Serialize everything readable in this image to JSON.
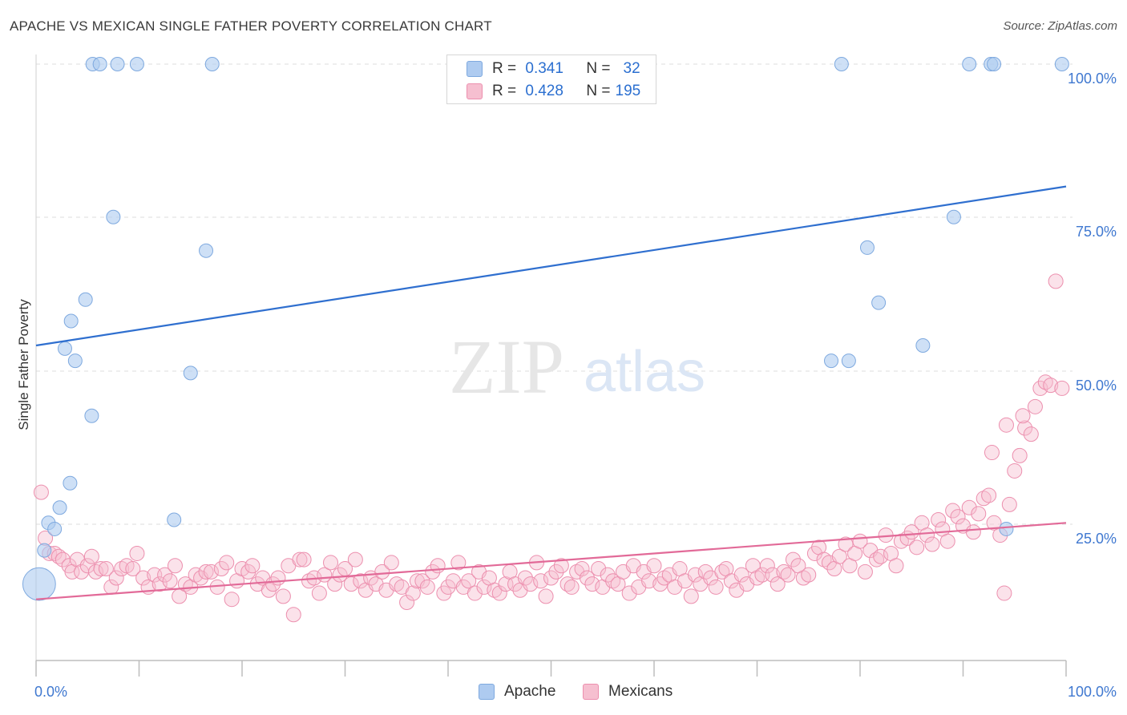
{
  "header": {
    "title": "APACHE VS MEXICAN SINGLE FATHER POVERTY CORRELATION CHART",
    "source": "Source: ZipAtlas.com"
  },
  "watermark": {
    "zip": "ZIP",
    "atlas": "atlas"
  },
  "stats_legend": {
    "rows": [
      {
        "r_label": "R =",
        "r_value": "0.341",
        "n_label": "N =",
        "n_value": "32"
      },
      {
        "r_label": "R =",
        "r_value": "0.428",
        "n_label": "N =",
        "n_value": "195"
      }
    ]
  },
  "legend": {
    "items": [
      "Apache",
      "Mexicans"
    ]
  },
  "colors": {
    "apache_fill": "#aecbf0",
    "apache_stroke": "#7ea9df",
    "apache_line": "#2f6fcf",
    "mexican_fill": "#f6bfd0",
    "mexican_stroke": "#ec8fae",
    "mexican_line": "#e26a98",
    "axis_text": "#3f78d0",
    "grid": "#dedede"
  },
  "chart_data": {
    "type": "scatter",
    "title": "APACHE VS MEXICAN SINGLE FATHER POVERTY CORRELATION CHART",
    "ylabel": "Single Father Poverty",
    "xlabel": "",
    "xlim": [
      0,
      100
    ],
    "ylim": [
      0,
      100
    ],
    "x_tick_labels": [
      "0.0%",
      "100.0%"
    ],
    "y_tick_labels": [
      "100.0%",
      "75.0%",
      "50.0%",
      "25.0%"
    ],
    "y_ticks": [
      100,
      75,
      50,
      25
    ],
    "grid": true,
    "legend_position": "bottom",
    "series": [
      {
        "name": "Apache",
        "trend": {
          "start": [
            0,
            51.5
          ],
          "end": [
            100,
            77.5
          ]
        },
        "points": [
          [
            0.3,
            12.5,
            2.4
          ],
          [
            0.8,
            18.0,
            1
          ],
          [
            1.2,
            22.5,
            1
          ],
          [
            1.8,
            21.5,
            1
          ],
          [
            2.3,
            25.0,
            1
          ],
          [
            3.3,
            29.0,
            1
          ],
          [
            2.8,
            51.0,
            1
          ],
          [
            3.8,
            49.0,
            1
          ],
          [
            3.4,
            55.5,
            1
          ],
          [
            4.8,
            59.0,
            1
          ],
          [
            5.4,
            40.0,
            1
          ],
          [
            7.5,
            72.5,
            1
          ],
          [
            15.0,
            47.0,
            1
          ],
          [
            16.5,
            67.0,
            1
          ],
          [
            13.4,
            23.0,
            1
          ],
          [
            5.5,
            97.5,
            1
          ],
          [
            6.2,
            97.5,
            1
          ],
          [
            7.9,
            97.5,
            1
          ],
          [
            9.8,
            97.5,
            1
          ],
          [
            17.1,
            97.5,
            1
          ],
          [
            78.2,
            97.5,
            1
          ],
          [
            90.6,
            97.5,
            1
          ],
          [
            92.7,
            97.5,
            1
          ],
          [
            93.0,
            97.5,
            1
          ],
          [
            99.6,
            97.5,
            1
          ],
          [
            89.1,
            72.5,
            1
          ],
          [
            80.7,
            67.5,
            1
          ],
          [
            81.8,
            58.5,
            1
          ],
          [
            86.1,
            51.5,
            1
          ],
          [
            77.2,
            49.0,
            1
          ],
          [
            78.9,
            49.0,
            1
          ],
          [
            94.2,
            21.5,
            1
          ]
        ]
      },
      {
        "name": "Mexicans",
        "trend": {
          "start": [
            0,
            10.0
          ],
          "end": [
            100,
            22.5
          ]
        },
        "points": [
          [
            0.5,
            27.5
          ],
          [
            0.9,
            20.0
          ],
          [
            1.3,
            17.5
          ],
          [
            1.8,
            17.5
          ],
          [
            2.2,
            17.0
          ],
          [
            2.6,
            16.5
          ],
          [
            3.2,
            15.5
          ],
          [
            3.5,
            14.5
          ],
          [
            4.0,
            16.5
          ],
          [
            4.4,
            14.5
          ],
          [
            5.0,
            15.5
          ],
          [
            5.4,
            17.0
          ],
          [
            5.8,
            14.5
          ],
          [
            6.3,
            15.0
          ],
          [
            6.8,
            15.0
          ],
          [
            7.3,
            12.0
          ],
          [
            7.8,
            13.5
          ],
          [
            8.3,
            15.0
          ],
          [
            8.8,
            15.5
          ],
          [
            9.4,
            15.0
          ],
          [
            9.8,
            17.5
          ],
          [
            10.4,
            13.5
          ],
          [
            10.9,
            12.0
          ],
          [
            11.5,
            14.0
          ],
          [
            12.0,
            12.5
          ],
          [
            12.5,
            14.0
          ],
          [
            13.0,
            13.0
          ],
          [
            13.5,
            15.5
          ],
          [
            13.9,
            10.5
          ],
          [
            14.5,
            12.5
          ],
          [
            15.0,
            12.0
          ],
          [
            15.5,
            14.0
          ],
          [
            16.0,
            13.5
          ],
          [
            16.5,
            14.5
          ],
          [
            17.0,
            14.5
          ],
          [
            17.6,
            12.0
          ],
          [
            18.0,
            15.0
          ],
          [
            18.5,
            16.0
          ],
          [
            19.0,
            10.0
          ],
          [
            19.5,
            13.0
          ],
          [
            20.0,
            15.0
          ],
          [
            20.6,
            14.5
          ],
          [
            21.0,
            15.5
          ],
          [
            21.5,
            12.5
          ],
          [
            22.0,
            13.5
          ],
          [
            22.6,
            11.5
          ],
          [
            23.0,
            12.5
          ],
          [
            23.5,
            13.5
          ],
          [
            24.0,
            10.5
          ],
          [
            24.5,
            15.5
          ],
          [
            25.0,
            7.5
          ],
          [
            25.6,
            16.5
          ],
          [
            26.0,
            16.5
          ],
          [
            26.5,
            13.0
          ],
          [
            27.0,
            13.5
          ],
          [
            27.5,
            11.0
          ],
          [
            28.0,
            14.0
          ],
          [
            28.6,
            16.0
          ],
          [
            29.0,
            12.5
          ],
          [
            29.5,
            14.0
          ],
          [
            30.0,
            15.0
          ],
          [
            30.6,
            12.5
          ],
          [
            31.0,
            16.5
          ],
          [
            31.5,
            13.0
          ],
          [
            32.0,
            11.5
          ],
          [
            32.5,
            13.5
          ],
          [
            33.0,
            12.5
          ],
          [
            33.6,
            14.5
          ],
          [
            34.0,
            11.5
          ],
          [
            34.5,
            16.0
          ],
          [
            35.0,
            12.5
          ],
          [
            35.5,
            12.0
          ],
          [
            36.0,
            9.5
          ],
          [
            36.6,
            11.0
          ],
          [
            37.0,
            13.0
          ],
          [
            37.5,
            13.0
          ],
          [
            38.0,
            12.0
          ],
          [
            38.5,
            14.5
          ],
          [
            39.0,
            15.5
          ],
          [
            39.6,
            11.0
          ],
          [
            40.0,
            12.0
          ],
          [
            40.5,
            13.0
          ],
          [
            41.0,
            16.0
          ],
          [
            41.5,
            12.0
          ],
          [
            42.0,
            13.0
          ],
          [
            42.6,
            11.0
          ],
          [
            43.0,
            14.5
          ],
          [
            43.5,
            12.0
          ],
          [
            44.0,
            13.5
          ],
          [
            44.5,
            11.5
          ],
          [
            45.0,
            11.0
          ],
          [
            45.6,
            12.5
          ],
          [
            46.0,
            14.5
          ],
          [
            46.5,
            12.5
          ],
          [
            47.0,
            11.5
          ],
          [
            47.5,
            13.5
          ],
          [
            48.0,
            12.5
          ],
          [
            48.6,
            16.0
          ],
          [
            49.0,
            13.0
          ],
          [
            49.5,
            10.5
          ],
          [
            50.0,
            13.5
          ],
          [
            50.5,
            14.5
          ],
          [
            51.0,
            15.5
          ],
          [
            51.6,
            12.5
          ],
          [
            52.0,
            12.0
          ],
          [
            52.5,
            14.5
          ],
          [
            53.0,
            15.0
          ],
          [
            53.5,
            13.5
          ],
          [
            54.0,
            12.5
          ],
          [
            54.6,
            15.0
          ],
          [
            55.0,
            12.0
          ],
          [
            55.5,
            14.0
          ],
          [
            56.0,
            13.0
          ],
          [
            56.5,
            12.5
          ],
          [
            57.0,
            14.5
          ],
          [
            57.6,
            11.0
          ],
          [
            58.0,
            15.5
          ],
          [
            58.5,
            12.0
          ],
          [
            59.0,
            14.5
          ],
          [
            59.5,
            13.0
          ],
          [
            60.0,
            15.5
          ],
          [
            60.6,
            12.5
          ],
          [
            61.0,
            13.5
          ],
          [
            61.5,
            14.0
          ],
          [
            62.0,
            12.0
          ],
          [
            62.5,
            15.0
          ],
          [
            63.0,
            13.0
          ],
          [
            63.6,
            10.5
          ],
          [
            64.0,
            14.0
          ],
          [
            64.5,
            12.5
          ],
          [
            65.0,
            14.5
          ],
          [
            65.5,
            13.5
          ],
          [
            66.0,
            12.0
          ],
          [
            66.6,
            14.5
          ],
          [
            67.0,
            15.0
          ],
          [
            67.5,
            13.0
          ],
          [
            68.0,
            11.5
          ],
          [
            68.5,
            14.0
          ],
          [
            69.0,
            12.5
          ],
          [
            69.6,
            15.5
          ],
          [
            70.0,
            13.5
          ],
          [
            70.5,
            14.0
          ],
          [
            71.0,
            15.5
          ],
          [
            71.5,
            14.0
          ],
          [
            72.0,
            12.5
          ],
          [
            72.6,
            14.5
          ],
          [
            73.0,
            14.0
          ],
          [
            73.5,
            16.5
          ],
          [
            74.0,
            15.5
          ],
          [
            74.5,
            13.5
          ],
          [
            75.0,
            14.0
          ],
          [
            75.6,
            17.5
          ],
          [
            76.0,
            18.5
          ],
          [
            76.5,
            16.5
          ],
          [
            77.0,
            16.0
          ],
          [
            77.5,
            15.0
          ],
          [
            78.0,
            17.0
          ],
          [
            78.6,
            19.0
          ],
          [
            79.0,
            15.5
          ],
          [
            79.5,
            17.5
          ],
          [
            80.0,
            19.5
          ],
          [
            80.5,
            14.5
          ],
          [
            81.0,
            18.0
          ],
          [
            81.6,
            16.5
          ],
          [
            82.0,
            17.0
          ],
          [
            82.5,
            20.5
          ],
          [
            83.0,
            17.5
          ],
          [
            83.5,
            15.5
          ],
          [
            84.0,
            19.5
          ],
          [
            84.6,
            20.0
          ],
          [
            85.0,
            21.0
          ],
          [
            85.5,
            18.5
          ],
          [
            86.0,
            22.5
          ],
          [
            86.5,
            20.5
          ],
          [
            87.0,
            19.0
          ],
          [
            87.6,
            23.0
          ],
          [
            88.0,
            21.5
          ],
          [
            88.5,
            19.5
          ],
          [
            89.0,
            24.5
          ],
          [
            89.5,
            23.5
          ],
          [
            90.0,
            22.0
          ],
          [
            90.6,
            25.0
          ],
          [
            91.0,
            21.0
          ],
          [
            91.5,
            24.0
          ],
          [
            92.0,
            26.5
          ],
          [
            92.5,
            27.0
          ],
          [
            93.0,
            22.5
          ],
          [
            93.6,
            20.5
          ],
          [
            94.0,
            11.0
          ],
          [
            94.5,
            25.5
          ],
          [
            95.0,
            31.0
          ],
          [
            95.5,
            33.5
          ],
          [
            96.0,
            38.0
          ],
          [
            96.6,
            37.0
          ],
          [
            97.0,
            41.5
          ],
          [
            97.5,
            44.5
          ],
          [
            98.0,
            45.5
          ],
          [
            98.5,
            45.0
          ],
          [
            99.0,
            62.0
          ],
          [
            99.6,
            44.5
          ],
          [
            92.8,
            34.0
          ],
          [
            94.2,
            38.5
          ],
          [
            95.8,
            40.0
          ]
        ]
      }
    ]
  }
}
